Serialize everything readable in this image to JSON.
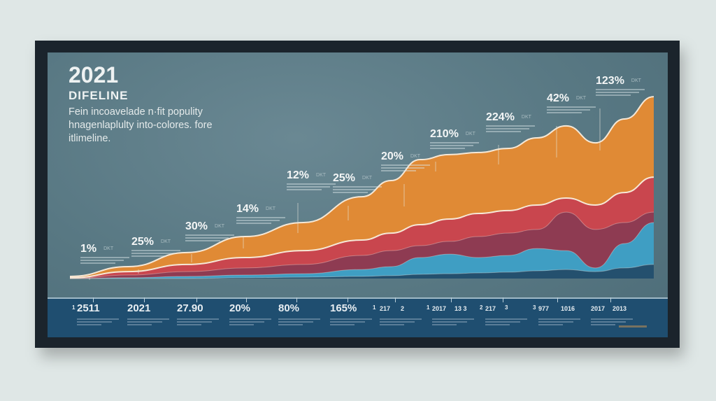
{
  "header": {
    "year": "2021",
    "subtitle": "DIFELINE",
    "description": "Fein incoavelade n·fit populity hnagenlaplulty into-colores. fore itlimeline."
  },
  "annotations": [
    {
      "value": "1%",
      "tag": "DKT"
    },
    {
      "value": "25%",
      "tag": "DKT"
    },
    {
      "value": "30%",
      "tag": "DKT"
    },
    {
      "value": "14%",
      "tag": "DKT"
    },
    {
      "value": "12%",
      "tag": "DKT"
    },
    {
      "value": "25%",
      "tag": "DKT"
    },
    {
      "value": "20%",
      "tag": "DKT"
    },
    {
      "value": "210%",
      "tag": "DKT"
    },
    {
      "value": "224%",
      "tag": "DKT"
    },
    {
      "value": "42%",
      "tag": "DKT"
    },
    {
      "value": "123%",
      "tag": "DKT"
    }
  ],
  "timeline": [
    {
      "label": "1"
    },
    {
      "label": "2511"
    },
    {
      "label": "2021"
    },
    {
      "label": "27.90"
    },
    {
      "label": "20%"
    },
    {
      "label": "80%"
    },
    {
      "label": "165%"
    },
    {
      "label": "1"
    },
    {
      "label": "217"
    },
    {
      "label": "2"
    },
    {
      "label": "1"
    },
    {
      "label": "2017"
    },
    {
      "label": "13 3"
    },
    {
      "label": "2"
    },
    {
      "label": "217"
    },
    {
      "label": "3"
    },
    {
      "label": "3"
    },
    {
      "label": "977"
    },
    {
      "label": "1016"
    },
    {
      "label": "2017"
    },
    {
      "label": "2013"
    }
  ],
  "chart_data": {
    "type": "area",
    "stacked": true,
    "note": "series values are cumulative top boundaries (0-100 scale)",
    "x": [
      0,
      10,
      20,
      30,
      40,
      50,
      55,
      60,
      65,
      70,
      75,
      80,
      85,
      90,
      95,
      100
    ],
    "ylim": [
      0,
      100
    ],
    "grid": false,
    "series": [
      {
        "name": "navy",
        "color": "#24506e",
        "values": [
          0,
          0,
          0,
          0.4,
          0.7,
          1.1,
          1.5,
          2.2,
          2.5,
          2.9,
          3.3,
          4,
          4.7,
          3.6,
          5.5,
          7.3
        ]
      },
      {
        "name": "blue",
        "color": "#3f9ec3",
        "values": [
          0,
          0.4,
          1.1,
          1.8,
          2.5,
          4.7,
          6.2,
          10.9,
          12.7,
          10.9,
          12,
          15.6,
          14.5,
          5.5,
          18.2,
          29.1
        ]
      },
      {
        "name": "maroon",
        "color": "#8e3b52",
        "values": [
          0,
          1.8,
          3.6,
          5.5,
          7.3,
          12,
          14.5,
          17.1,
          19.3,
          21.8,
          23.6,
          25.5,
          34.5,
          25.5,
          29.1,
          34.5
        ]
      },
      {
        "name": "red",
        "color": "#c9464e",
        "values": [
          0.4,
          3.6,
          7.3,
          10.9,
          14.5,
          20,
          23.6,
          28,
          30.9,
          33.8,
          35.3,
          38.2,
          41.8,
          38.2,
          44.7,
          52.7
        ]
      },
      {
        "name": "orange",
        "color": "#e08a35",
        "values": [
          1.1,
          6.2,
          13.5,
          21.8,
          29.1,
          42.5,
          50.9,
          61.8,
          64.4,
          65.5,
          67.6,
          73.1,
          79.3,
          70.5,
          82.9,
          94.5
        ]
      }
    ]
  }
}
